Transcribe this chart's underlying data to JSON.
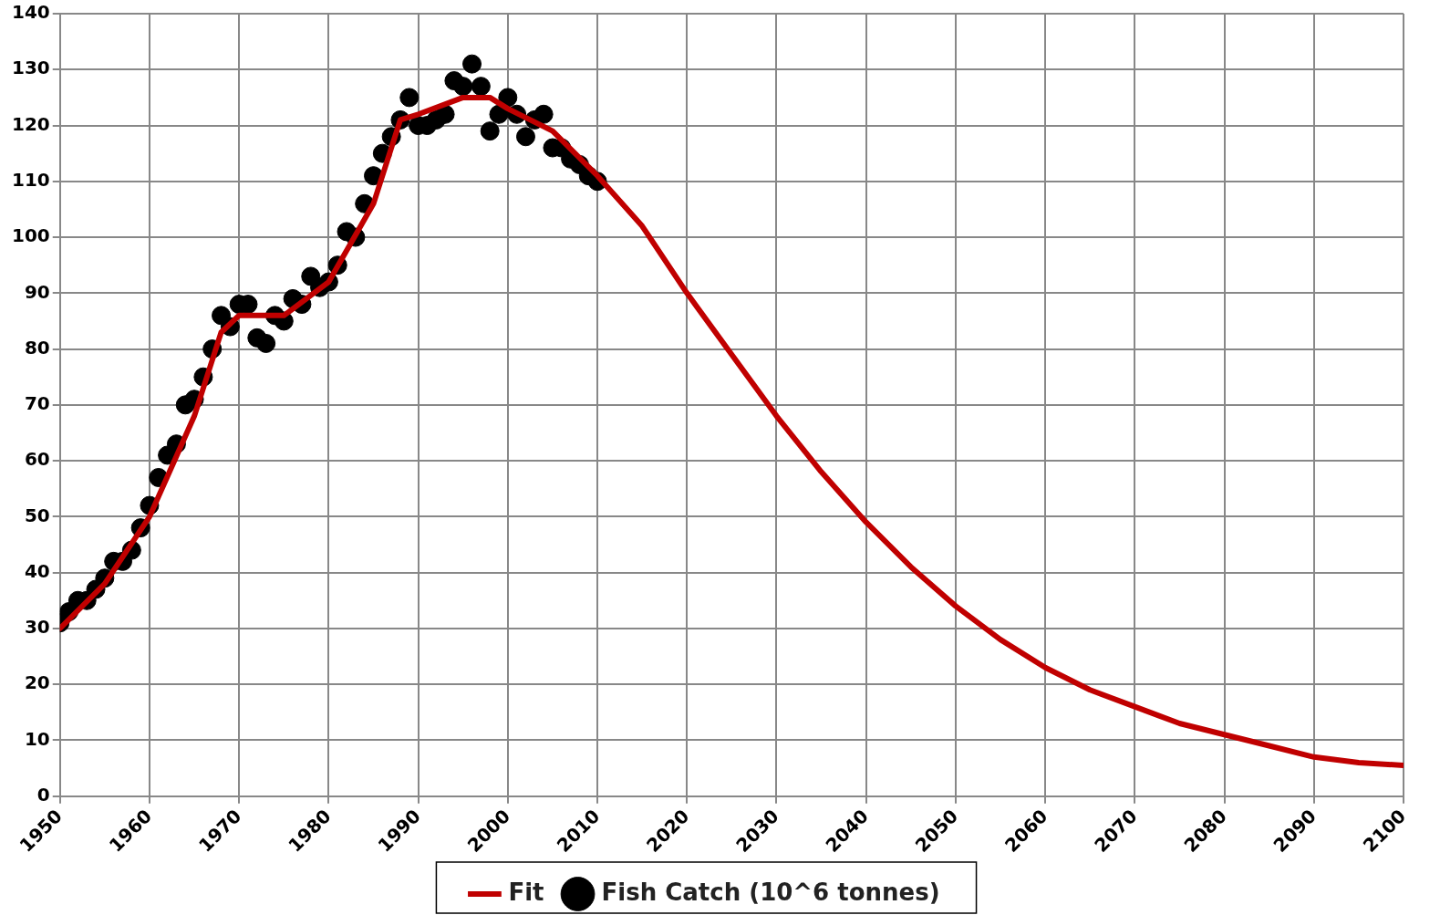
{
  "chart_data": {
    "type": "scatter",
    "xlim": [
      1950,
      2100
    ],
    "ylim": [
      0,
      140
    ],
    "xticks": [
      1950,
      1960,
      1970,
      1980,
      1990,
      2000,
      2010,
      2020,
      2030,
      2040,
      2050,
      2060,
      2070,
      2080,
      2090,
      2100
    ],
    "yticks": [
      0,
      10,
      20,
      30,
      40,
      50,
      60,
      70,
      80,
      90,
      100,
      110,
      120,
      130,
      140
    ],
    "grid": true,
    "legend": "bottom",
    "marker": "circle",
    "series": [
      {
        "name": "Fish Catch (10^6 tonnes)",
        "color": "#000000",
        "x": [
          1950,
          1951,
          1952,
          1953,
          1954,
          1955,
          1956,
          1957,
          1958,
          1959,
          1960,
          1961,
          1962,
          1963,
          1964,
          1965,
          1966,
          1967,
          1968,
          1969,
          1970,
          1971,
          1972,
          1973,
          1974,
          1975,
          1976,
          1977,
          1978,
          1979,
          1980,
          1981,
          1982,
          1983,
          1984,
          1985,
          1986,
          1987,
          1988,
          1989,
          1990,
          1991,
          1992,
          1993,
          1994,
          1995,
          1996,
          1997,
          1998,
          1999,
          2000,
          2001,
          2002,
          2003,
          2004,
          2005,
          2006,
          2007,
          2008,
          2009,
          2010
        ],
        "values": [
          31,
          33,
          35,
          35,
          37,
          39,
          42,
          42,
          44,
          48,
          52,
          57,
          61,
          63,
          70,
          71,
          75,
          80,
          86,
          84,
          88,
          88,
          82,
          81,
          86,
          85,
          89,
          88,
          93,
          91,
          92,
          95,
          101,
          100,
          106,
          111,
          115,
          118,
          121,
          125,
          120,
          120,
          121,
          122,
          128,
          127,
          131,
          127,
          119,
          122,
          125,
          122,
          118,
          121,
          122,
          116,
          116,
          114,
          113,
          111,
          110
        ]
      },
      {
        "name": "Fit",
        "type": "line",
        "color": "#c00000",
        "marker": "none",
        "line_style": "solid",
        "x": [
          1950,
          1955,
          1960,
          1965,
          1968,
          1970,
          1975,
          1980,
          1985,
          1988,
          1990,
          1995,
          1998,
          2000,
          2005,
          2010,
          2015,
          2020,
          2025,
          2030,
          2035,
          2040,
          2045,
          2050,
          2055,
          2060,
          2065,
          2070,
          2075,
          2080,
          2085,
          2090,
          2095,
          2100
        ],
        "values": [
          30,
          38,
          50,
          68,
          83,
          86,
          86,
          92,
          106,
          121,
          122,
          125,
          125,
          123,
          119,
          111,
          102,
          90,
          79,
          68,
          58,
          49,
          41,
          34,
          28,
          23,
          19,
          16,
          13,
          11,
          9,
          7,
          6,
          5.5
        ]
      }
    ]
  }
}
